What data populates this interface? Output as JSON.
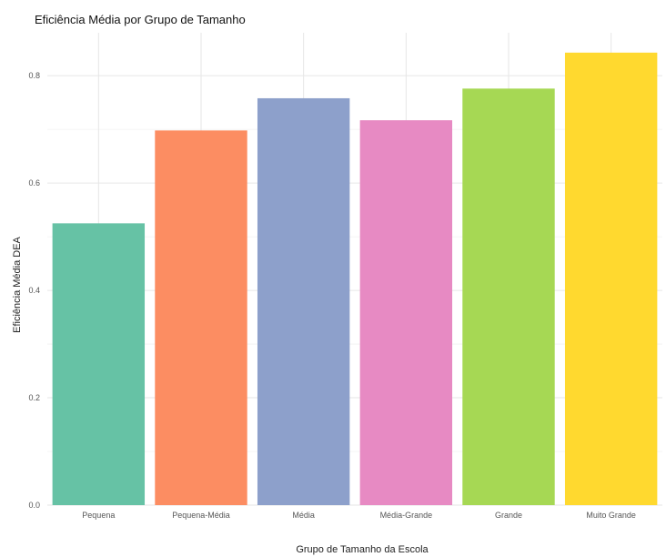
{
  "chart_data": {
    "type": "bar",
    "title": "Eficiência Média por Grupo de Tamanho",
    "xlabel": "Grupo de Tamanho da Escola",
    "ylabel": "Eficiência Média DEA",
    "categories": [
      "Pequena",
      "Pequena-Média",
      "Média",
      "Média-Grande",
      "Grande",
      "Muito Grande"
    ],
    "values": [
      0.525,
      0.698,
      0.758,
      0.717,
      0.776,
      0.843
    ],
    "colors": [
      "#66c2a5",
      "#fc8d62",
      "#8da0cb",
      "#e78ac3",
      "#a6d854",
      "#ffd92f"
    ],
    "ylim": [
      0,
      0.88
    ],
    "yticks": [
      0.0,
      0.2,
      0.4,
      0.6,
      0.8
    ],
    "ytick_labels": [
      "0.0",
      "0.2",
      "0.4",
      "0.6",
      "0.8"
    ],
    "grid": true,
    "legend": "none"
  }
}
